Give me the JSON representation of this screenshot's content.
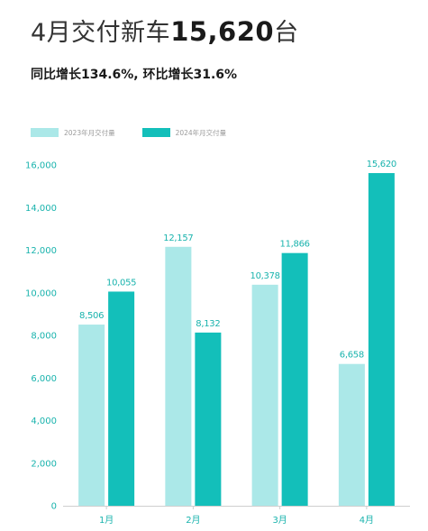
{
  "title": {
    "prefix": "4月交付新车",
    "number": "15,620",
    "suffix": "台"
  },
  "subtitle": "同比增长134.6%, 环比增长31.6%",
  "colors": {
    "series_2023": "#abe8e8",
    "series_2024": "#13bfba",
    "axis_text": "#19b3ad",
    "axis_line": "#cfcfcf"
  },
  "chart_data": {
    "type": "bar",
    "categories": [
      "1月",
      "2月",
      "3月",
      "4月"
    ],
    "series": [
      {
        "name": "2023年月交付量",
        "values": [
          8506,
          12157,
          10378,
          6658
        ],
        "labels": [
          "8,506",
          "12,157",
          "10,378",
          "6,658"
        ]
      },
      {
        "name": "2024年月交付量",
        "values": [
          10055,
          8132,
          11866,
          15620
        ],
        "labels": [
          "10,055",
          "8,132",
          "11,866",
          "15,620"
        ]
      }
    ],
    "ylim": [
      0,
      16000
    ],
    "yticks": [
      0,
      2000,
      4000,
      6000,
      8000,
      10000,
      12000,
      14000,
      16000
    ],
    "ytick_labels": [
      "0",
      "2,000",
      "4,000",
      "6,000",
      "8,000",
      "10,000",
      "12,000",
      "14,000",
      "16,000"
    ],
    "grid": false,
    "legend_position": "top-left",
    "xlabel": "",
    "ylabel": ""
  }
}
